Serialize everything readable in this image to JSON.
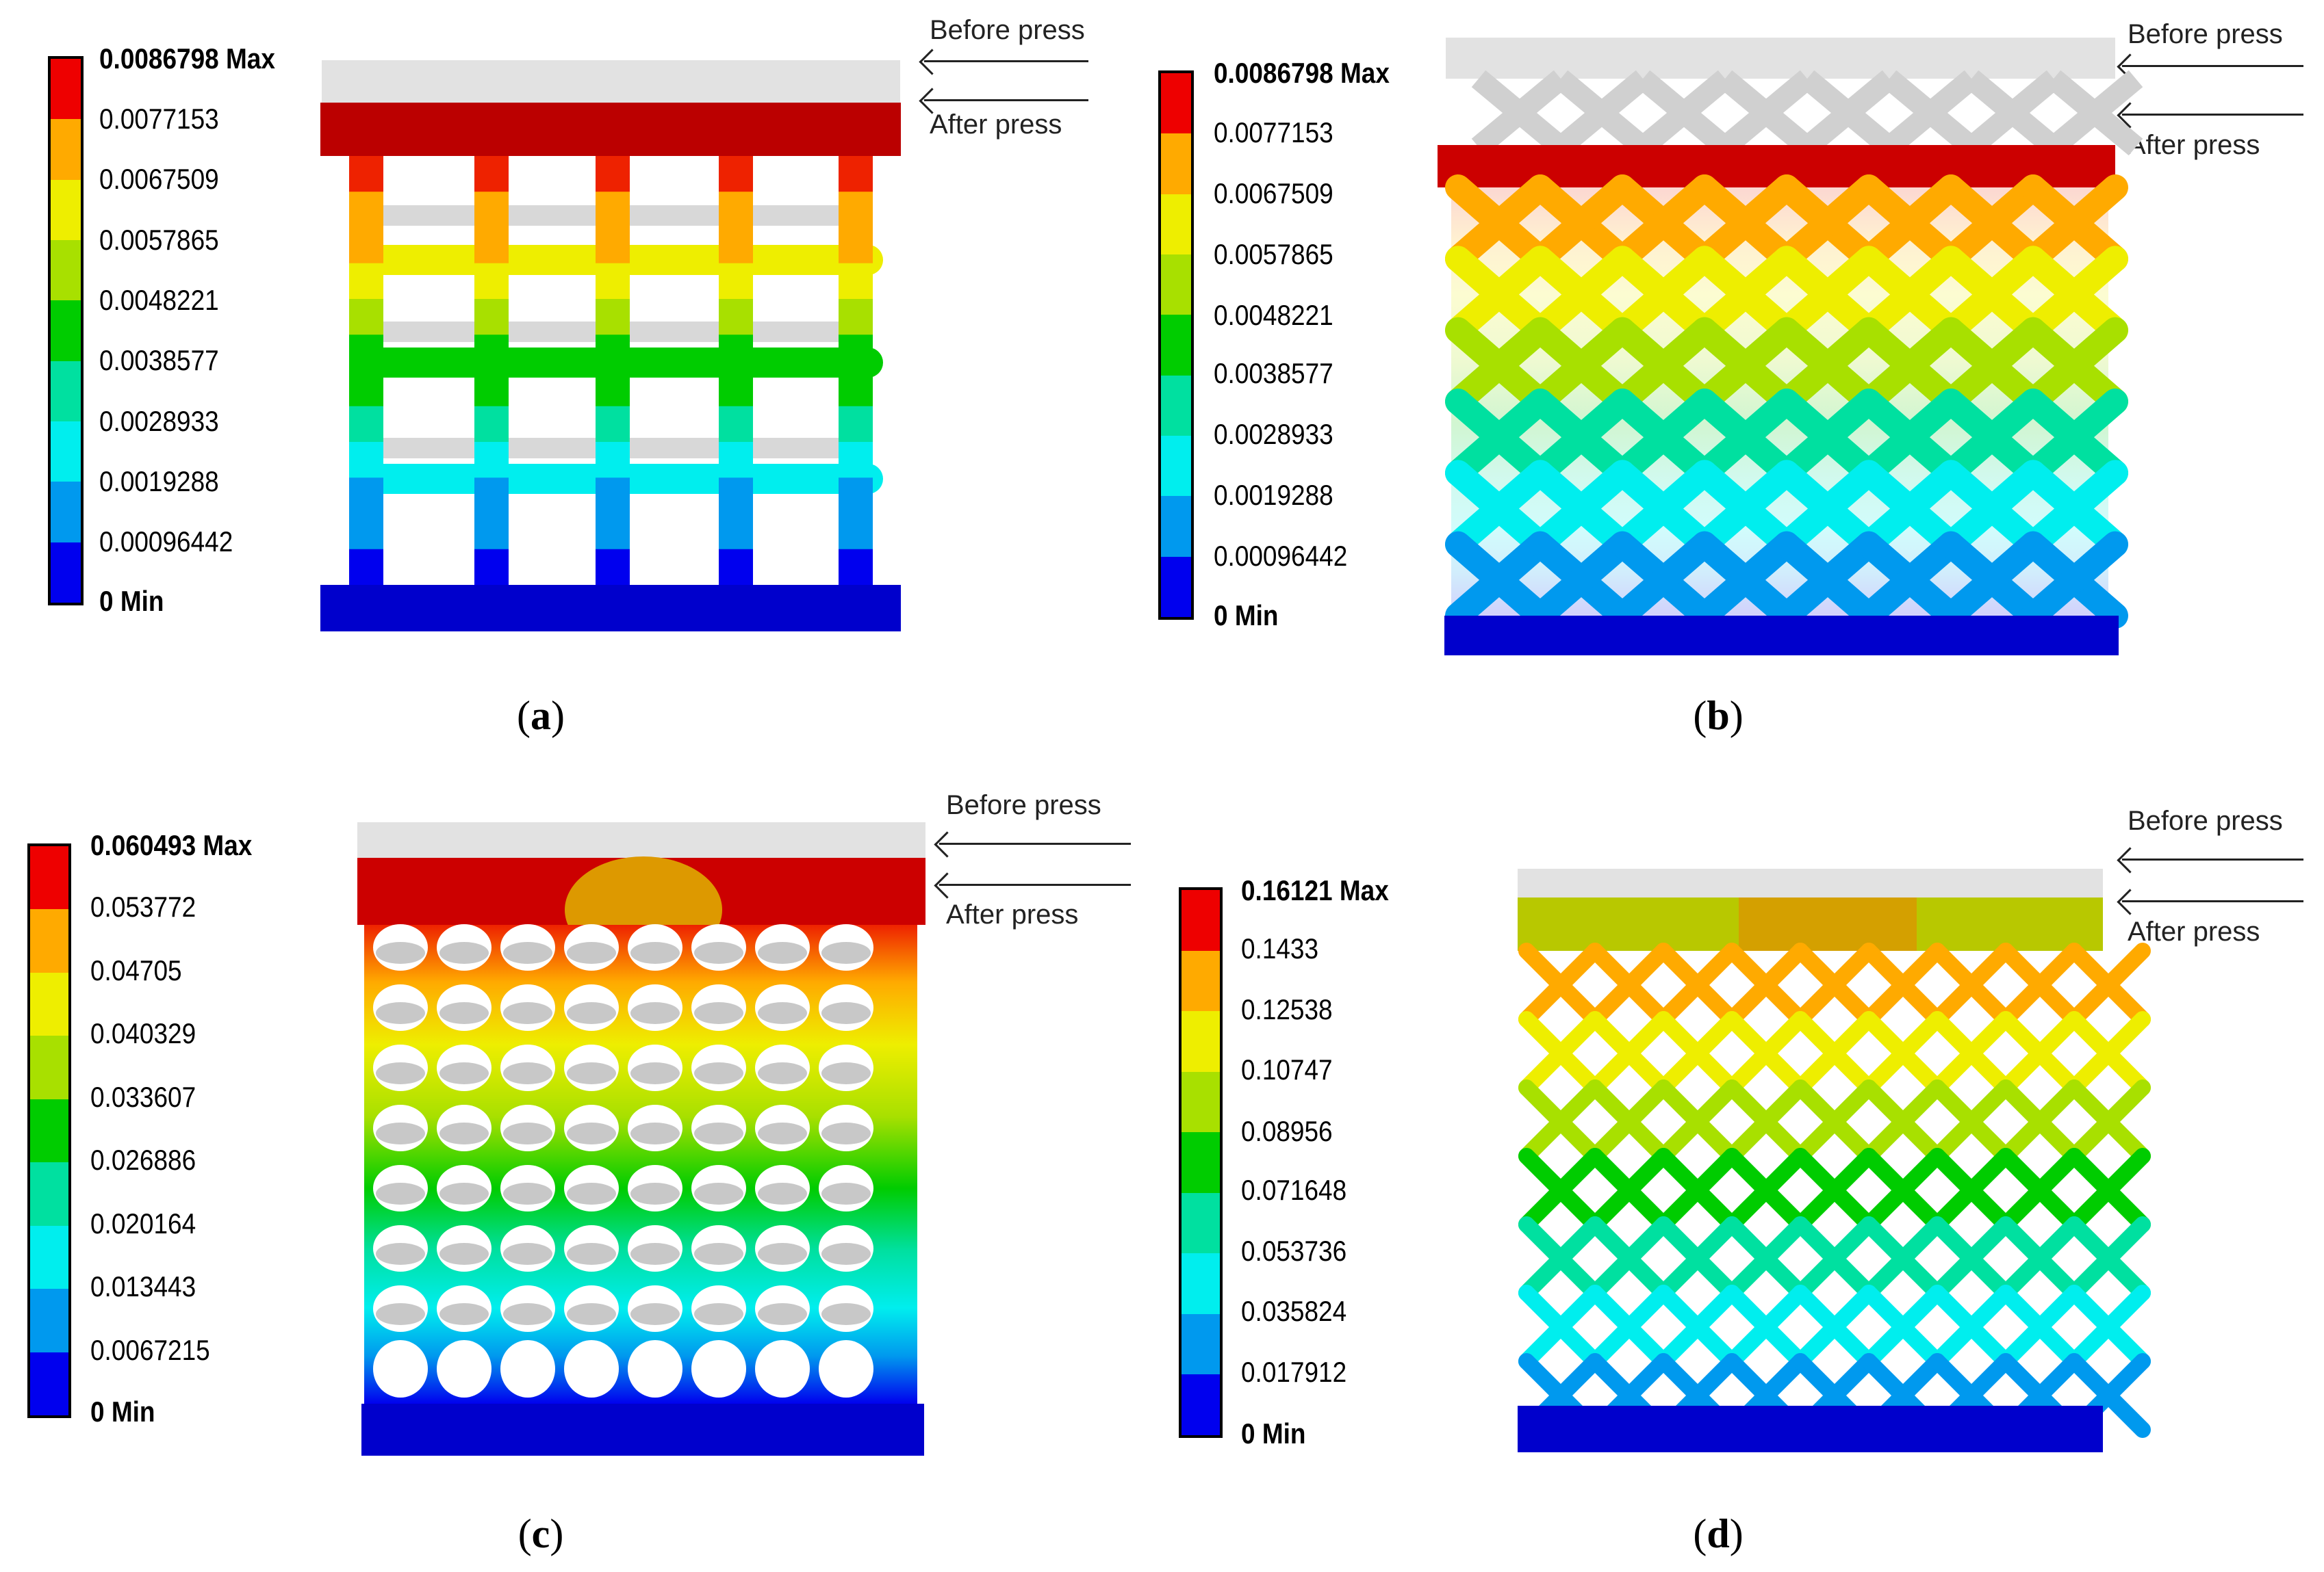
{
  "palette": [
    "#0000ee",
    "#0099ee",
    "#00eeee",
    "#00e0a0",
    "#00cc00",
    "#a8e000",
    "#eeee00",
    "#ffaa00",
    "#ee0000"
  ],
  "press_labels": {
    "before": "Before press",
    "after": "After press"
  },
  "panels": [
    {
      "caption_letter": "a",
      "legend": [
        "0.0086798 Max",
        "0.0077153",
        "0.0067509",
        "0.0057865",
        "0.0048221",
        "0.0038577",
        "0.0028933",
        "0.0019288",
        "0.00096442",
        "0 Min"
      ],
      "structure": "square-grid"
    },
    {
      "caption_letter": "b",
      "legend": [
        "0.0086798 Max",
        "0.0077153",
        "0.0067509",
        "0.0057865",
        "0.0048221",
        "0.0038577",
        "0.0028933",
        "0.0019288",
        "0.00096442",
        "0 Min"
      ],
      "structure": "x-lattice"
    },
    {
      "caption_letter": "c",
      "legend": [
        "0.060493 Max",
        "0.053772",
        "0.04705",
        "0.040329",
        "0.033607",
        "0.026886",
        "0.020164",
        "0.013443",
        "0.0067215",
        "0 Min"
      ],
      "structure": "circular-holes"
    },
    {
      "caption_letter": "d",
      "legend": [
        "0.16121 Max",
        "0.1433",
        "0.12538",
        "0.10747",
        "0.08956",
        "0.071648",
        "0.053736",
        "0.035824",
        "0.017912",
        "0 Min"
      ],
      "structure": "diamond-lattice"
    }
  ]
}
